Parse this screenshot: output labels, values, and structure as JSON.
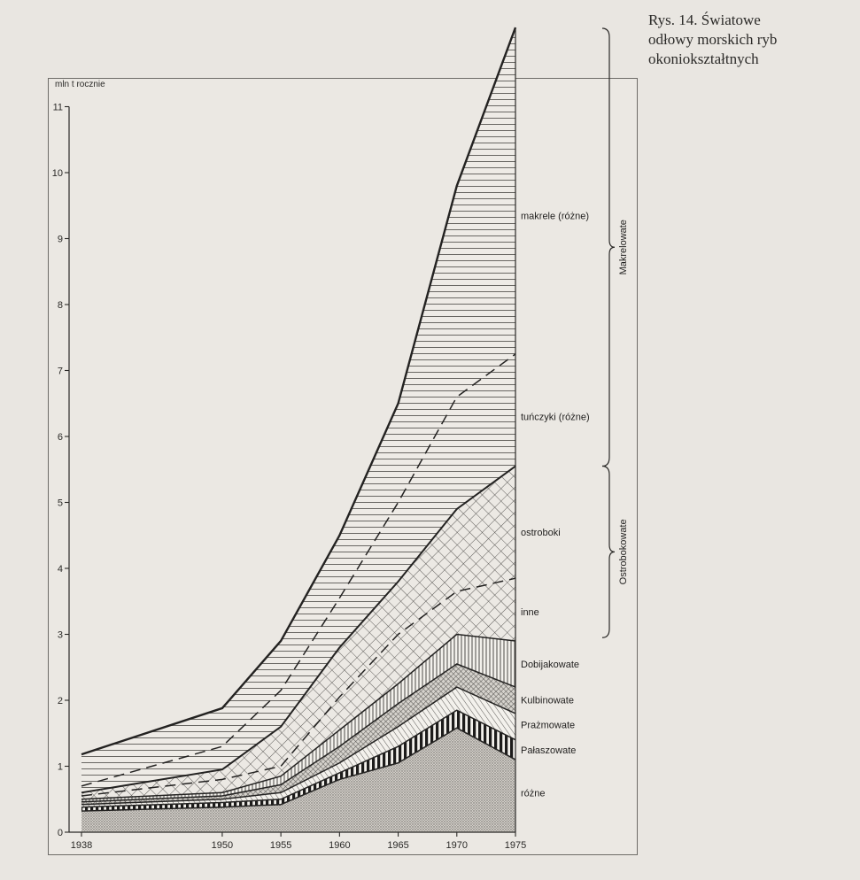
{
  "caption": {
    "lines": [
      "Rys. 14. Światowe",
      "odłowy morskich ryb",
      "okoniokształtnych"
    ]
  },
  "chart_data": {
    "type": "area",
    "title": "Rys. 14. Światowe odłowy morskich ryb okoniokształtnych",
    "ylabel": "mln t rocznie",
    "xlabel": "",
    "ylim": [
      0,
      11
    ],
    "yticks": [
      0,
      1,
      2,
      3,
      4,
      5,
      6,
      7,
      8,
      9,
      10,
      11
    ],
    "x": [
      1938,
      1950,
      1955,
      1960,
      1965,
      1970,
      1975
    ],
    "x_tick_labels": [
      "1938",
      "1950",
      "1955",
      "1960",
      "1965",
      "1970",
      "1975"
    ],
    "stacking": "cumulative boundaries (mln t)",
    "series": [
      {
        "name": "różne",
        "pattern": "dots",
        "cumulative": [
          0.32,
          0.38,
          0.42,
          0.8,
          1.05,
          1.58,
          1.1
        ]
      },
      {
        "name": "Pałaszowate",
        "pattern": "vertical-thick",
        "cumulative": [
          0.38,
          0.45,
          0.5,
          0.9,
          1.3,
          1.85,
          1.4
        ]
      },
      {
        "name": "Prażmowate",
        "pattern": "diagonal",
        "cumulative": [
          0.42,
          0.5,
          0.6,
          1.05,
          1.6,
          2.2,
          1.8
        ]
      },
      {
        "name": "Kulbinowate",
        "pattern": "cross-fine",
        "cumulative": [
          0.46,
          0.55,
          0.72,
          1.3,
          1.95,
          2.55,
          2.2
        ]
      },
      {
        "name": "Dobijakowate",
        "pattern": "vertical-fine",
        "cumulative": [
          0.5,
          0.6,
          0.85,
          1.55,
          2.25,
          3.0,
          2.9
        ]
      },
      {
        "name": "inne",
        "pattern": "crosshatch",
        "cumulative": [
          0.55,
          0.8,
          1.0,
          2.05,
          3.0,
          3.65,
          3.85
        ]
      },
      {
        "name": "ostroboki",
        "pattern": "crosshatch",
        "cumulative": [
          0.6,
          0.95,
          1.6,
          2.8,
          3.8,
          4.9,
          5.55
        ]
      },
      {
        "name": "tuńczyki (różne)",
        "pattern": "horizontal",
        "cumulative": [
          0.7,
          1.3,
          2.15,
          3.55,
          5.0,
          6.6,
          7.25
        ]
      },
      {
        "name": "makrele (różne)",
        "pattern": "horizontal",
        "cumulative": [
          1.18,
          1.88,
          2.9,
          4.5,
          6.5,
          9.8,
          12.2
        ]
      }
    ],
    "groups": [
      {
        "name": "Makrelowate",
        "members": [
          "makrele (różne)",
          "tuńczyki (różne)"
        ]
      },
      {
        "name": "Ostrobokowate",
        "members": [
          "ostroboki",
          "inne"
        ]
      }
    ],
    "grid": false,
    "legend": "inline labels on right"
  }
}
